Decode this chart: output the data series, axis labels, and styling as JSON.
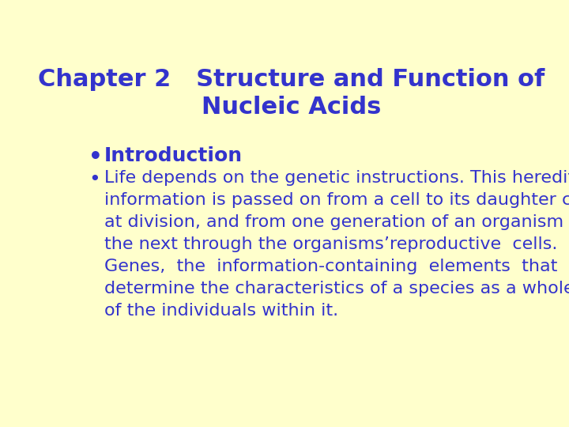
{
  "background_color": "#FFFFCC",
  "title_line1": "Chapter 2   Structure and Function of",
  "title_line2": "Nucleic Acids",
  "title_color": "#3333CC",
  "title_fontsize": 22,
  "bullet1_text": "Introduction",
  "bullet1_color": "#3333CC",
  "bullet1_fontsize": 18,
  "bullet2_lines": [
    "Life depends on the genetic instructions. This hereditary",
    "information is passed on from a cell to its daughter cells",
    "at division, and from one generation of an organism to",
    "the next through the organisms’reproductive  cells.",
    "Genes,  the  information-containing  elements  that",
    "determine the characteristics of a species as a whole and",
    "of the individuals within it."
  ],
  "bullet2_color": "#3333CC",
  "bullet2_fontsize": 16,
  "bullet2_linespacing": 1.5
}
